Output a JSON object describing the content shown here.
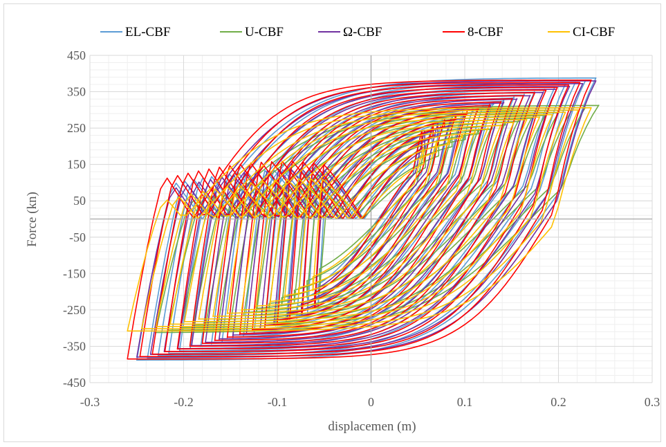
{
  "chart_data": {
    "type": "line",
    "title": "",
    "xlabel": "displacemen  (m)",
    "ylabel": "Force (kn)",
    "xlim": [
      -0.3,
      0.3
    ],
    "ylim": [
      -450,
      450
    ],
    "x_ticks": [
      -0.3,
      -0.2,
      -0.1,
      0,
      0.1,
      0.2,
      0.3
    ],
    "y_ticks": [
      450,
      350,
      250,
      150,
      50,
      -50,
      -150,
      -250,
      -350,
      -450
    ],
    "x_tick_labels": [
      "-0.3",
      "-0.2",
      "-0.1",
      "0",
      "0.1",
      "0.2",
      "0.3"
    ],
    "y_tick_labels": [
      "450",
      "350",
      "250",
      "150",
      "50",
      "-50",
      "-150",
      "-250",
      "-350",
      "-450"
    ],
    "grid": true,
    "legend_position": "top",
    "series": [
      {
        "name": "EL-CBF",
        "color": "#5b9bd5",
        "fmax": 388,
        "fmin": -388,
        "dmax": 0.24,
        "dmin": -0.25,
        "zero_cross": 0.18,
        "stiffness": 3600,
        "cycles": 18
      },
      {
        "name": "U-CBF",
        "color": "#70ad47",
        "fmax": 313,
        "fmin": -313,
        "dmax": 0.243,
        "dmin": -0.23,
        "zero_cross": 0.17,
        "stiffness": 2600,
        "cycles": 14
      },
      {
        "name": "Ω-CBF",
        "color": "#7030a0",
        "fmax": 380,
        "fmin": -380,
        "dmax": 0.24,
        "dmin": -0.25,
        "zero_cross": 0.185,
        "stiffness": 3800,
        "cycles": 14
      },
      {
        "name": "8-CBF",
        "color": "#ff0000",
        "fmax": 382,
        "fmin": -385,
        "dmax": 0.235,
        "dmin": -0.26,
        "zero_cross": 0.19,
        "stiffness": 4200,
        "cycles": 16
      },
      {
        "name": "CI-CBF",
        "color": "#ffc000",
        "fmax": 306,
        "fmin": -308,
        "dmax": 0.235,
        "dmin": -0.26,
        "zero_cross": 0.2,
        "stiffness": 3000,
        "cycles": 14
      }
    ]
  }
}
